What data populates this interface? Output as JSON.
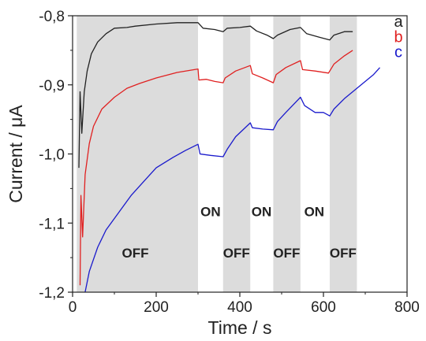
{
  "chart_data": {
    "type": "line",
    "xlabel": "Time / s",
    "ylabel": "Current / μA",
    "xlim": [
      0,
      800
    ],
    "ylim": [
      -1.2,
      -0.8
    ],
    "x_ticks": [
      0,
      200,
      400,
      600,
      800
    ],
    "x_tick_labels": [
      "0",
      "200",
      "400",
      "600",
      "800"
    ],
    "y_ticks": [
      -0.8,
      -0.9,
      -1.0,
      -1.1,
      -1.2
    ],
    "y_tick_labels": [
      "-0,8",
      "-0,9",
      "-1,0",
      "-1,1",
      "-1,2"
    ],
    "grid": false,
    "legend_position": "top-right",
    "shaded_regions": [
      {
        "x": [
          10,
          300
        ],
        "label": "OFF",
        "label_x": 150,
        "label_y": -1.15
      },
      {
        "x": [
          360,
          425
        ],
        "label": "OFF",
        "label_x": 392,
        "label_y": -1.15
      },
      {
        "x": [
          480,
          545
        ],
        "label": "OFF",
        "label_x": 512,
        "label_y": -1.15
      },
      {
        "x": [
          615,
          680
        ],
        "label": "OFF",
        "label_x": 647,
        "label_y": -1.15
      }
    ],
    "on_labels": [
      {
        "x": 330,
        "y": -1.09,
        "label": "ON"
      },
      {
        "x": 452,
        "y": -1.09,
        "label": "ON"
      },
      {
        "x": 578,
        "y": -1.09,
        "label": "ON"
      }
    ],
    "series": [
      {
        "name": "a",
        "color": "#222222",
        "points": [
          [
            15,
            -1.02
          ],
          [
            18,
            -0.91
          ],
          [
            22,
            -0.97
          ],
          [
            28,
            -0.91
          ],
          [
            35,
            -0.88
          ],
          [
            45,
            -0.855
          ],
          [
            60,
            -0.838
          ],
          [
            80,
            -0.826
          ],
          [
            100,
            -0.818
          ],
          [
            130,
            -0.817
          ],
          [
            150,
            -0.815
          ],
          [
            200,
            -0.812
          ],
          [
            250,
            -0.81
          ],
          [
            300,
            -0.81
          ],
          [
            312,
            -0.818
          ],
          [
            340,
            -0.82
          ],
          [
            360,
            -0.823
          ],
          [
            370,
            -0.818
          ],
          [
            400,
            -0.817
          ],
          [
            425,
            -0.815
          ],
          [
            440,
            -0.822
          ],
          [
            465,
            -0.828
          ],
          [
            480,
            -0.833
          ],
          [
            490,
            -0.828
          ],
          [
            520,
            -0.82
          ],
          [
            545,
            -0.817
          ],
          [
            560,
            -0.826
          ],
          [
            590,
            -0.831
          ],
          [
            615,
            -0.835
          ],
          [
            625,
            -0.828
          ],
          [
            650,
            -0.823
          ],
          [
            670,
            -0.823
          ]
        ]
      },
      {
        "name": "b",
        "color": "#e02020",
        "points": [
          [
            18,
            -1.19
          ],
          [
            20,
            -1.06
          ],
          [
            24,
            -1.12
          ],
          [
            30,
            -1.03
          ],
          [
            40,
            -0.985
          ],
          [
            50,
            -0.96
          ],
          [
            70,
            -0.935
          ],
          [
            100,
            -0.918
          ],
          [
            130,
            -0.905
          ],
          [
            160,
            -0.898
          ],
          [
            200,
            -0.89
          ],
          [
            250,
            -0.882
          ],
          [
            300,
            -0.877
          ],
          [
            302,
            -0.893
          ],
          [
            320,
            -0.892
          ],
          [
            340,
            -0.895
          ],
          [
            360,
            -0.897
          ],
          [
            365,
            -0.89
          ],
          [
            390,
            -0.88
          ],
          [
            425,
            -0.872
          ],
          [
            430,
            -0.884
          ],
          [
            455,
            -0.89
          ],
          [
            480,
            -0.897
          ],
          [
            487,
            -0.885
          ],
          [
            510,
            -0.875
          ],
          [
            545,
            -0.865
          ],
          [
            550,
            -0.878
          ],
          [
            580,
            -0.88
          ],
          [
            612,
            -0.883
          ],
          [
            625,
            -0.87
          ],
          [
            650,
            -0.858
          ],
          [
            670,
            -0.85
          ]
        ]
      },
      {
        "name": "c",
        "color": "#1a1acc",
        "points": [
          [
            30,
            -1.2
          ],
          [
            40,
            -1.17
          ],
          [
            60,
            -1.135
          ],
          [
            80,
            -1.11
          ],
          [
            110,
            -1.085
          ],
          [
            140,
            -1.06
          ],
          [
            170,
            -1.04
          ],
          [
            200,
            -1.02
          ],
          [
            240,
            -1.005
          ],
          [
            270,
            -0.995
          ],
          [
            300,
            -0.986
          ],
          [
            305,
            -1.0
          ],
          [
            330,
            -1.002
          ],
          [
            360,
            -1.004
          ],
          [
            370,
            -0.993
          ],
          [
            390,
            -0.975
          ],
          [
            425,
            -0.955
          ],
          [
            430,
            -0.962
          ],
          [
            455,
            -0.964
          ],
          [
            480,
            -0.965
          ],
          [
            490,
            -0.953
          ],
          [
            510,
            -0.94
          ],
          [
            545,
            -0.918
          ],
          [
            555,
            -0.93
          ],
          [
            580,
            -0.94
          ],
          [
            600,
            -0.94
          ],
          [
            615,
            -0.945
          ],
          [
            625,
            -0.935
          ],
          [
            650,
            -0.92
          ],
          [
            680,
            -0.905
          ],
          [
            700,
            -0.895
          ],
          [
            720,
            -0.885
          ],
          [
            735,
            -0.875
          ]
        ]
      }
    ]
  }
}
